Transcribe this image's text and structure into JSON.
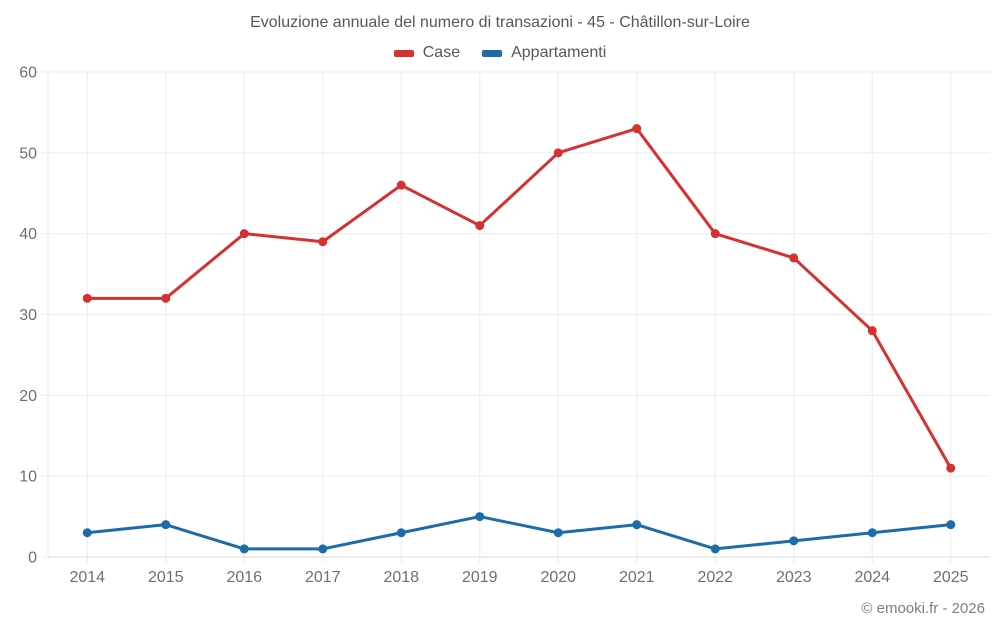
{
  "title": "Evoluzione annuale del numero di transazioni - 45 - Châtillon-sur-Loire",
  "footer": "© emooki.fr - 2026",
  "legend": {
    "items": [
      {
        "label": "Case",
        "color": "#d63031"
      },
      {
        "label": "Appartamenti",
        "color": "#1b6ca8"
      }
    ]
  },
  "colors": {
    "case_red": "#d63031",
    "appartamenti_blue": "#1b6ca8",
    "grid": "#ebebeb",
    "axis": "#d8d8d8",
    "tick_text": "#6f6f6f"
  },
  "chart_data": {
    "type": "line",
    "categories": [
      "2014",
      "2015",
      "2016",
      "2017",
      "2018",
      "2019",
      "2020",
      "2021",
      "2022",
      "2023",
      "2024",
      "2025"
    ],
    "series": [
      {
        "name": "Case",
        "color": "#d63031",
        "values": [
          32,
          32,
          40,
          39,
          46,
          41,
          50,
          53,
          40,
          37,
          28,
          11
        ]
      },
      {
        "name": "Appartamenti",
        "color": "#1b6ca8",
        "values": [
          3,
          4,
          1,
          1,
          3,
          5,
          3,
          4,
          1,
          2,
          3,
          4
        ]
      }
    ],
    "title": "Evoluzione annuale del numero di transazioni - 45 - Châtillon-sur-Loire",
    "xlabel": "",
    "ylabel": "",
    "ylim": [
      0,
      60
    ],
    "yticks": [
      0,
      10,
      20,
      30,
      40,
      50,
      60
    ],
    "grid": true,
    "legend_position": "top"
  }
}
